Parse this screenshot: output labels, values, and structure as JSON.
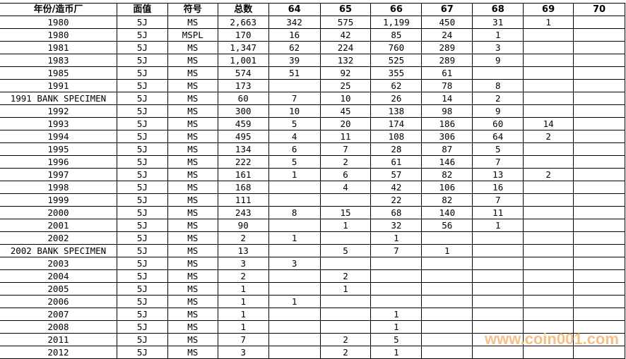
{
  "headers": [
    "年份/造币厂",
    "面值",
    "符号",
    "总数",
    "64",
    "65",
    "66",
    "67",
    "68",
    "69",
    "70"
  ],
  "rows": [
    [
      "1980",
      "5J",
      "MS",
      "2,663",
      "342",
      "575",
      "1,199",
      "450",
      "31",
      "1",
      ""
    ],
    [
      "1980",
      "5J",
      "MSPL",
      "170",
      "16",
      "42",
      "85",
      "24",
      "1",
      "",
      ""
    ],
    [
      "1981",
      "5J",
      "MS",
      "1,347",
      "62",
      "224",
      "760",
      "289",
      "3",
      "",
      ""
    ],
    [
      "1983",
      "5J",
      "MS",
      "1,001",
      "39",
      "132",
      "525",
      "289",
      "9",
      "",
      ""
    ],
    [
      "1985",
      "5J",
      "MS",
      "574",
      "51",
      "92",
      "355",
      "61",
      "",
      "",
      ""
    ],
    [
      "1991",
      "5J",
      "MS",
      "173",
      "",
      "25",
      "62",
      "78",
      "8",
      "",
      ""
    ],
    [
      "1991 BANK SPECIMEN",
      "5J",
      "MS",
      "60",
      "7",
      "10",
      "26",
      "14",
      "2",
      "",
      ""
    ],
    [
      "1992",
      "5J",
      "MS",
      "300",
      "10",
      "45",
      "138",
      "98",
      "9",
      "",
      ""
    ],
    [
      "1993",
      "5J",
      "MS",
      "459",
      "5",
      "20",
      "174",
      "186",
      "60",
      "14",
      ""
    ],
    [
      "1994",
      "5J",
      "MS",
      "495",
      "4",
      "11",
      "108",
      "306",
      "64",
      "2",
      ""
    ],
    [
      "1995",
      "5J",
      "MS",
      "134",
      "6",
      "7",
      "28",
      "87",
      "5",
      "",
      ""
    ],
    [
      "1996",
      "5J",
      "MS",
      "222",
      "5",
      "2",
      "61",
      "146",
      "7",
      "",
      ""
    ],
    [
      "1997",
      "5J",
      "MS",
      "161",
      "1",
      "6",
      "57",
      "82",
      "13",
      "2",
      ""
    ],
    [
      "1998",
      "5J",
      "MS",
      "168",
      "",
      "4",
      "42",
      "106",
      "16",
      "",
      ""
    ],
    [
      "1999",
      "5J",
      "MS",
      "111",
      "",
      "",
      "22",
      "82",
      "7",
      "",
      ""
    ],
    [
      "2000",
      "5J",
      "MS",
      "243",
      "8",
      "15",
      "68",
      "140",
      "11",
      "",
      ""
    ],
    [
      "2001",
      "5J",
      "MS",
      "90",
      "",
      "1",
      "32",
      "56",
      "1",
      "",
      ""
    ],
    [
      "2002",
      "5J",
      "MS",
      "2",
      "1",
      "",
      "1",
      "",
      "",
      "",
      ""
    ],
    [
      "2002 BANK SPECIMEN",
      "5J",
      "MS",
      "13",
      "",
      "5",
      "7",
      "1",
      "",
      "",
      ""
    ],
    [
      "2003",
      "5J",
      "MS",
      "3",
      "3",
      "",
      "",
      "",
      "",
      "",
      ""
    ],
    [
      "2004",
      "5J",
      "MS",
      "2",
      "",
      "2",
      "",
      "",
      "",
      "",
      ""
    ],
    [
      "2005",
      "5J",
      "MS",
      "1",
      "",
      "1",
      "",
      "",
      "",
      "",
      ""
    ],
    [
      "2006",
      "5J",
      "MS",
      "1",
      "1",
      "",
      "",
      "",
      "",
      "",
      ""
    ],
    [
      "2007",
      "5J",
      "MS",
      "1",
      "",
      "",
      "1",
      "",
      "",
      "",
      ""
    ],
    [
      "2008",
      "5J",
      "MS",
      "1",
      "",
      "",
      "1",
      "",
      "",
      "",
      ""
    ],
    [
      "2011",
      "5J",
      "MS",
      "7",
      "",
      "2",
      "5",
      "",
      "",
      "",
      ""
    ],
    [
      "2012",
      "5J",
      "MS",
      "3",
      "",
      "2",
      "1",
      "",
      "",
      "",
      ""
    ]
  ],
  "watermark": "www.coin001.com",
  "colors": {
    "watermark": "#f8b978",
    "grid": "#000000"
  }
}
